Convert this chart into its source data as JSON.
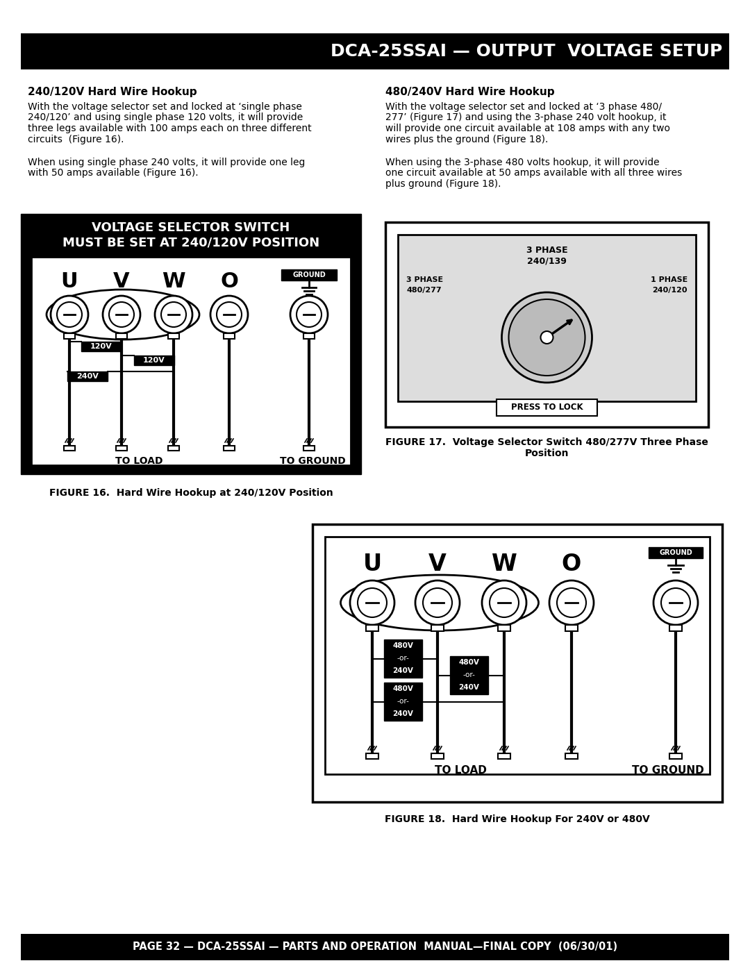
{
  "title": "DCA-25SSAI — OUTPUT  VOLTAGE SETUP",
  "footer": "PAGE 32 — DCA-25SSAI — PARTS AND OPERATION  MANUAL—FINAL COPY  (06/30/01)",
  "left_heading": "240/120V Hard Wire Hookup",
  "right_heading": "480/240V Hard Wire Hookup",
  "fig16_title1": "VOLTAGE SELECTOR SWITCH",
  "fig16_title2": "MUST BE SET AT 240/120V POSITION",
  "fig16_caption": "FIGURE 16.  Hard Wire Hookup at 240/120V Position",
  "fig17_caption": "FIGURE 17.  Voltage Selector Switch 480/277V Three Phase\nPosition",
  "fig18_caption": "FIGURE 18.  Hard Wire Hookup For 240V or 480V",
  "bg_color": "#ffffff",
  "header_bg": "#000000",
  "header_text_color": "#ffffff",
  "footer_bg": "#000000",
  "footer_text_color": "#ffffff",
  "left_para1_lines": [
    "With the voltage selector set and locked at ‘single phase",
    "240/120’ and using single phase 120 volts, it will provide",
    "three legs available with 100 amps each on three different",
    "circuits  (Figure 16)."
  ],
  "left_para2_lines": [
    "When using single phase 240 volts, it will provide one leg",
    "with 50 amps available (Figure 16)."
  ],
  "right_para1_lines": [
    "With the voltage selector set and locked at ‘3 phase 480/",
    "277’ (Figure 17) and using the 3-phase 240 volt hookup, it",
    "will provide one circuit available at 108 amps with any two",
    "wires plus the ground (Figure 18)."
  ],
  "right_para2_lines": [
    "When using the 3-phase 480 volts hookup, it will provide",
    "one circuit available at 50 amps available with all three wires",
    "plus ground (Figure 18)."
  ]
}
